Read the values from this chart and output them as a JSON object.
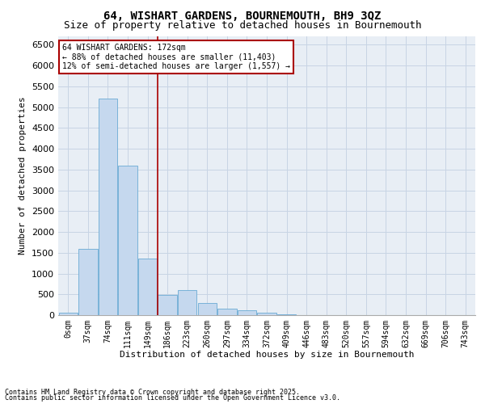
{
  "title1": "64, WISHART GARDENS, BOURNEMOUTH, BH9 3QZ",
  "title2": "Size of property relative to detached houses in Bournemouth",
  "xlabel": "Distribution of detached houses by size in Bournemouth",
  "ylabel": "Number of detached properties",
  "categories": [
    "0sqm",
    "37sqm",
    "74sqm",
    "111sqm",
    "149sqm",
    "186sqm",
    "223sqm",
    "260sqm",
    "297sqm",
    "334sqm",
    "372sqm",
    "409sqm",
    "446sqm",
    "483sqm",
    "520sqm",
    "557sqm",
    "594sqm",
    "632sqm",
    "669sqm",
    "706sqm",
    "743sqm"
  ],
  "values": [
    50,
    1600,
    5200,
    3600,
    1350,
    480,
    600,
    290,
    160,
    115,
    50,
    20,
    5,
    2,
    1,
    0,
    0,
    0,
    0,
    0,
    0
  ],
  "bar_color": "#c5d8ee",
  "bar_edge_color": "#6aaad4",
  "vline_x": 4.5,
  "vline_color": "#aa0000",
  "annotation_text": "64 WISHART GARDENS: 172sqm\n← 88% of detached houses are smaller (11,403)\n12% of semi-detached houses are larger (1,557) →",
  "annotation_box_color": "#ffffff",
  "annotation_box_edge": "#aa0000",
  "ylim": [
    0,
    6700
  ],
  "yticks": [
    0,
    500,
    1000,
    1500,
    2000,
    2500,
    3000,
    3500,
    4000,
    4500,
    5000,
    5500,
    6000,
    6500
  ],
  "footer1": "Contains HM Land Registry data © Crown copyright and database right 2025.",
  "footer2": "Contains public sector information licensed under the Open Government Licence v3.0.",
  "bg_color": "#ffffff",
  "plot_bg_color": "#e8eef5",
  "grid_color": "#c8d4e4",
  "title_fontsize": 10,
  "subtitle_fontsize": 9,
  "tick_fontsize": 7,
  "ylabel_fontsize": 8,
  "xlabel_fontsize": 8,
  "footer_fontsize": 6,
  "annotation_fontsize": 7
}
